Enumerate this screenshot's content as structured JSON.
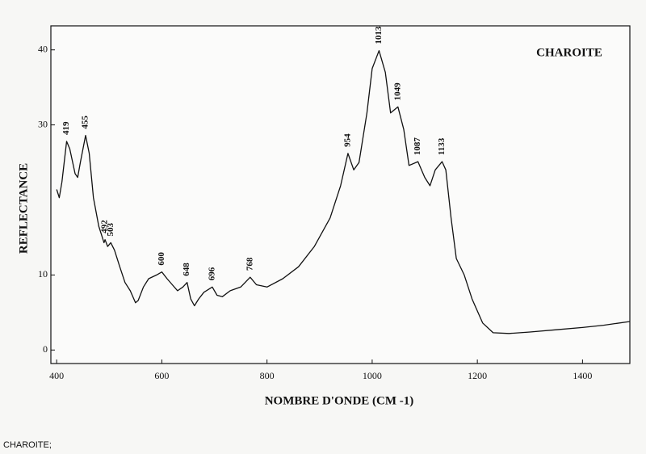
{
  "chart_data": {
    "type": "line",
    "title": "CHAROITE",
    "x_label": "NOMBRE D'ONDE (CM -1)",
    "y_label": "REFLECTANCE",
    "x": [
      400,
      405,
      410,
      419,
      425,
      435,
      440,
      445,
      455,
      462,
      470,
      480,
      490,
      492,
      497,
      503,
      510,
      520,
      530,
      540,
      550,
      555,
      565,
      575,
      590,
      600,
      610,
      620,
      630,
      640,
      648,
      655,
      662,
      670,
      680,
      696,
      705,
      715,
      730,
      750,
      768,
      780,
      800,
      830,
      860,
      890,
      920,
      940,
      954,
      965,
      975,
      990,
      1000,
      1013,
      1025,
      1035,
      1049,
      1060,
      1070,
      1087,
      1100,
      1110,
      1120,
      1133,
      1140,
      1150,
      1160,
      1175,
      1190,
      1210,
      1230,
      1260,
      1300,
      1350,
      1400,
      1440,
      1490
    ],
    "values": [
      21.4,
      20.3,
      22.4,
      27.8,
      26.8,
      23.5,
      23,
      25,
      28.6,
      26.2,
      20.3,
      16.5,
      14.3,
      14.7,
      13.8,
      14.3,
      13.3,
      11.1,
      9,
      7.9,
      6.3,
      6.6,
      8.4,
      9.5,
      10,
      10.4,
      9.5,
      8.7,
      7.9,
      8.4,
      9,
      6.8,
      5.9,
      6.8,
      7.7,
      8.4,
      7.3,
      7.1,
      7.9,
      8.4,
      9.7,
      8.7,
      8.4,
      9.5,
      11.1,
      13.8,
      17.6,
      21.9,
      26.2,
      24,
      25,
      31.6,
      37.5,
      39.9,
      37,
      31.6,
      32.4,
      29.4,
      24.6,
      25.1,
      23,
      21.9,
      24,
      25.1,
      24,
      17.6,
      12.2,
      10,
      6.8,
      3.6,
      2.3,
      2.2,
      2.4,
      2.7,
      3,
      3.3,
      3.8
    ],
    "color": "#111111",
    "peak_labels": [
      419,
      455,
      492,
      503,
      600,
      648,
      696,
      768,
      954,
      1013,
      1049,
      1087,
      1133
    ],
    "xlim": [
      389,
      1490
    ],
    "ylim": [
      -1.8,
      43.2
    ],
    "xticks": [
      400,
      600,
      800,
      1000,
      1200,
      1400
    ],
    "yticks": [
      0,
      10,
      30,
      40
    ],
    "grid": false
  },
  "footer": "CHAROITE;"
}
